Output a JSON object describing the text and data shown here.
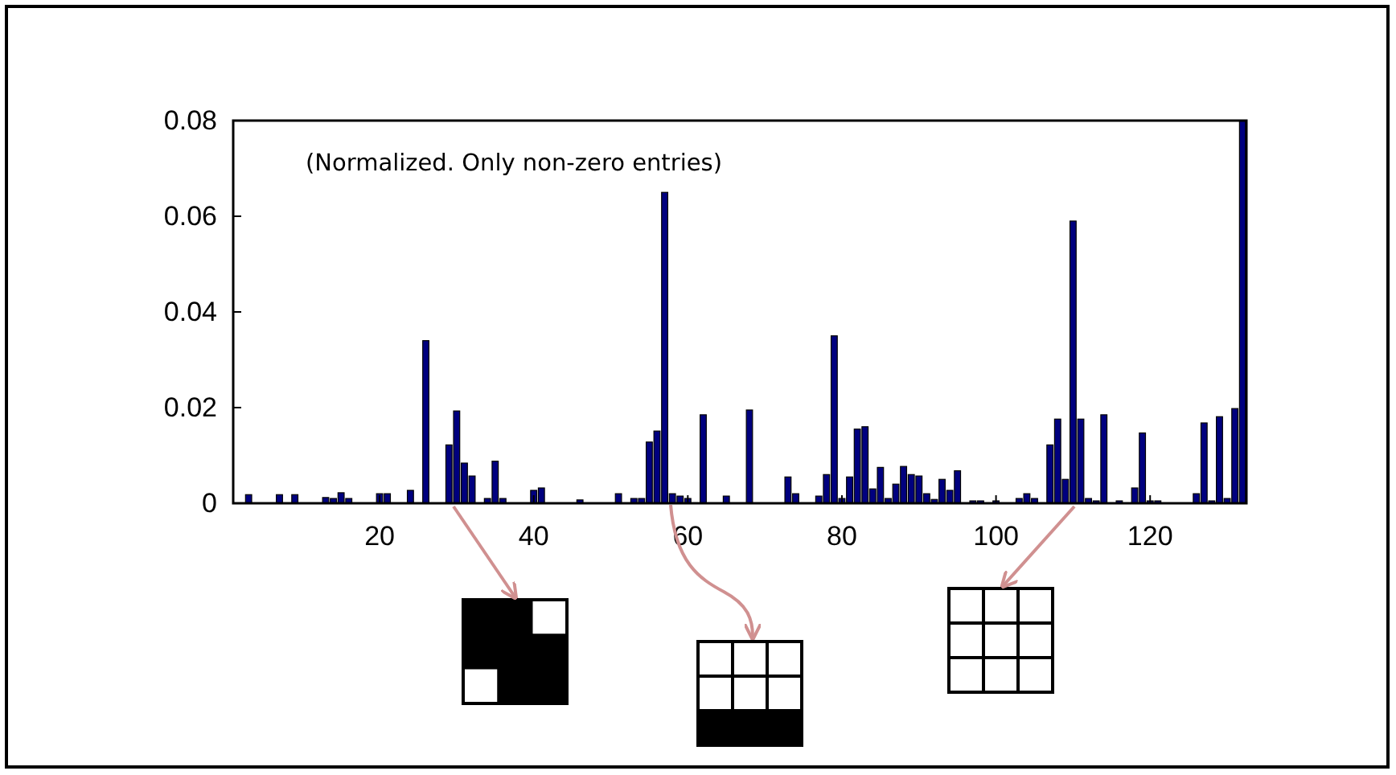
{
  "chart_data": {
    "type": "bar",
    "annotations": [
      "(Normalized. Only non-zero entries)"
    ],
    "x": [
      3,
      7,
      9,
      13,
      14,
      15,
      16,
      20,
      21,
      24,
      26,
      29,
      30,
      31,
      32,
      34,
      35,
      36,
      40,
      41,
      46,
      51,
      53,
      54,
      55,
      56,
      57,
      58,
      59,
      60,
      62,
      65,
      68,
      73,
      74,
      77,
      78,
      79,
      80,
      81,
      82,
      83,
      84,
      85,
      86,
      87,
      88,
      89,
      90,
      91,
      92,
      93,
      94,
      95,
      97,
      98,
      100,
      103,
      104,
      105,
      107,
      108,
      109,
      110,
      111,
      112,
      113,
      114,
      116,
      118,
      119,
      120,
      121,
      126,
      127,
      128,
      129,
      130,
      131,
      132
    ],
    "values": [
      0.0018,
      0.0018,
      0.0018,
      0.0012,
      0.001,
      0.0022,
      0.001,
      0.002,
      0.002,
      0.0027,
      0.034,
      0.0122,
      0.0193,
      0.0084,
      0.0057,
      0.001,
      0.0088,
      0.001,
      0.0027,
      0.0032,
      0.0007,
      0.002,
      0.001,
      0.001,
      0.0128,
      0.0151,
      0.065,
      0.002,
      0.0015,
      0.001,
      0.0185,
      0.0015,
      0.0195,
      0.0055,
      0.002,
      0.0015,
      0.006,
      0.035,
      0.001,
      0.0055,
      0.0155,
      0.016,
      0.003,
      0.0075,
      0.001,
      0.004,
      0.0077,
      0.006,
      0.0057,
      0.002,
      0.0008,
      0.005,
      0.0027,
      0.0068,
      0.0005,
      0.0005,
      0.0005,
      0.001,
      0.002,
      0.001,
      0.0122,
      0.0176,
      0.005,
      0.059,
      0.0176,
      0.001,
      0.0005,
      0.0185,
      0.0005,
      0.0032,
      0.0147,
      0.0005,
      0.0005,
      0.002,
      0.0168,
      0.0005,
      0.0181,
      0.001,
      0.0198,
      0.08
    ],
    "color": "#00007f",
    "xlim": [
      1,
      132.5
    ],
    "xticks": [
      20,
      40,
      60,
      80,
      100,
      120
    ],
    "ylim": [
      0,
      0.08
    ],
    "yticks": [
      0,
      0.02,
      0.04,
      0.06,
      0.08
    ]
  }
}
